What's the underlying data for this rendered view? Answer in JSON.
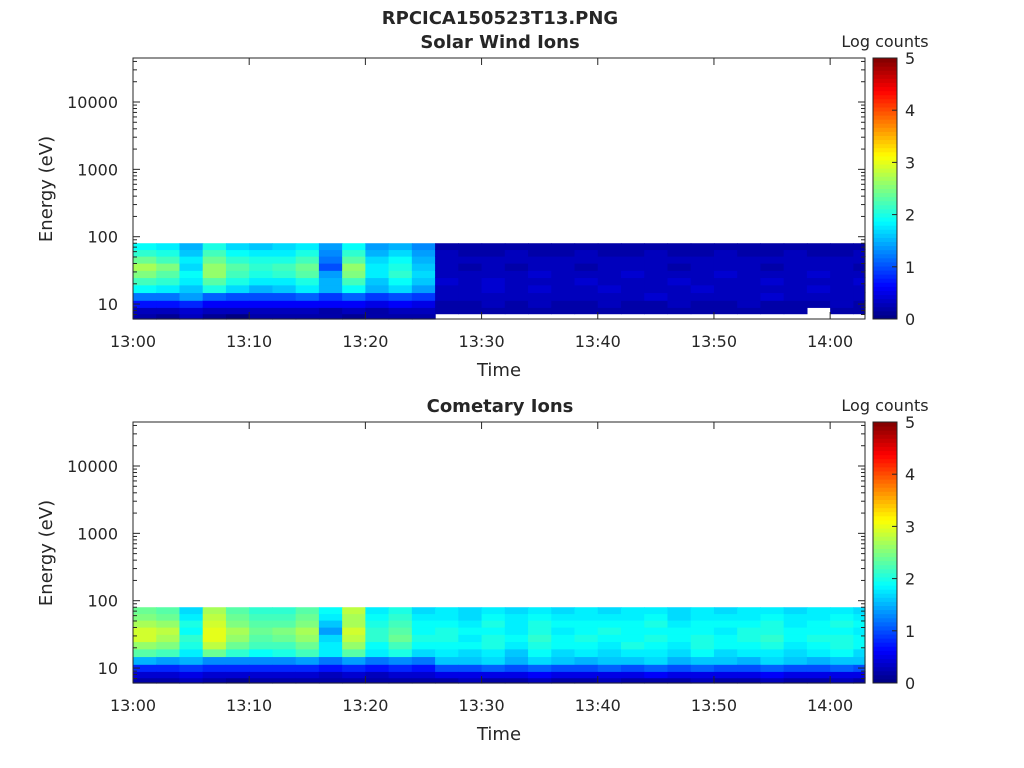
{
  "figure_title": "RPCICA150523T13.PNG",
  "chart_data": [
    {
      "type": "heatmap",
      "title": "Solar Wind Ions",
      "xlabel": "Time",
      "ylabel": "Energy (eV)",
      "x_ticks": [
        "13:00",
        "13:10",
        "13:20",
        "13:30",
        "13:40",
        "13:50",
        "14:00"
      ],
      "x_range": [
        "13:00",
        "14:03"
      ],
      "y_scale": "log",
      "y_ticks": [
        "10",
        "100",
        "1000",
        "10000"
      ],
      "y_range": [
        6,
        45000
      ],
      "data_energy_range": [
        6,
        80
      ],
      "colorbar": {
        "label": "Log counts",
        "ticks": [
          "0",
          "1",
          "2",
          "3",
          "4",
          "5"
        ],
        "range": [
          0,
          5
        ],
        "colormap": "jet"
      },
      "time_bins": [
        "13:00",
        "13:02",
        "13:04",
        "13:06",
        "13:08",
        "13:10",
        "13:12",
        "13:14",
        "13:16",
        "13:18",
        "13:20",
        "13:22",
        "13:24",
        "13:26",
        "13:28",
        "13:30",
        "13:32",
        "13:34",
        "13:36",
        "13:38",
        "13:40",
        "13:42",
        "13:44",
        "13:46",
        "13:48",
        "13:50",
        "13:52",
        "13:54",
        "13:56",
        "13:58",
        "14:00",
        "14:02"
      ],
      "energy_bins": [
        6.5,
        8,
        10,
        13,
        17,
        22,
        28,
        36,
        46,
        58,
        72
      ],
      "log_counts": [
        [
          0.2,
          0.3,
          0.7,
          1.2,
          1.9,
          2.2,
          2.5,
          2.7,
          2.4,
          2.1,
          1.9
        ],
        [
          0.1,
          0.3,
          0.7,
          1.2,
          1.8,
          2.1,
          2.3,
          2.5,
          2.2,
          2.0,
          1.8
        ],
        [
          0.3,
          0.4,
          0.8,
          1.4,
          1.6,
          1.8,
          1.9,
          1.7,
          1.8,
          1.6,
          1.5
        ],
        [
          0.1,
          0.3,
          0.6,
          1.1,
          2.0,
          2.3,
          2.6,
          2.6,
          2.4,
          2.2,
          2.0
        ],
        [
          0.0,
          0.3,
          0.6,
          1.0,
          1.7,
          2.0,
          2.2,
          2.3,
          2.1,
          1.9,
          1.7
        ],
        [
          0.2,
          0.3,
          0.6,
          1.0,
          1.5,
          1.8,
          2.0,
          2.1,
          2.0,
          1.8,
          1.6
        ],
        [
          0.2,
          0.3,
          0.6,
          1.0,
          1.6,
          1.8,
          2.1,
          2.2,
          2.0,
          1.8,
          1.7
        ],
        [
          0.2,
          0.3,
          0.6,
          1.1,
          1.8,
          2.0,
          2.3,
          2.4,
          2.2,
          2.0,
          1.8
        ],
        [
          0.2,
          0.2,
          0.6,
          0.9,
          1.5,
          1.5,
          1.4,
          1.0,
          1.2,
          1.3,
          1.4
        ],
        [
          0.1,
          0.3,
          0.6,
          1.1,
          1.9,
          2.2,
          2.5,
          2.6,
          2.3,
          2.1,
          1.9
        ],
        [
          0.2,
          0.2,
          0.5,
          0.9,
          1.5,
          1.6,
          1.8,
          1.8,
          1.7,
          1.5,
          1.4
        ],
        [
          0.2,
          0.3,
          0.6,
          1.0,
          1.7,
          1.9,
          2.1,
          2.0,
          1.9,
          1.7,
          1.5
        ],
        [
          0.2,
          0.3,
          0.5,
          0.9,
          1.4,
          1.6,
          1.7,
          1.6,
          1.5,
          1.4,
          1.3
        ],
        [
          null,
          0.2,
          0.2,
          0.3,
          0.3,
          0.4,
          0.3,
          0.3,
          0.3,
          0.3,
          0.2
        ],
        [
          null,
          0.2,
          0.2,
          0.3,
          0.3,
          0.3,
          0.3,
          0.2,
          0.3,
          0.2,
          0.2
        ],
        [
          null,
          0.2,
          0.3,
          0.3,
          0.4,
          0.4,
          0.3,
          0.3,
          0.3,
          0.2,
          0.2
        ],
        [
          null,
          0.2,
          0.2,
          0.3,
          0.3,
          0.3,
          0.3,
          0.2,
          0.3,
          0.3,
          0.2
        ],
        [
          null,
          0.2,
          0.3,
          0.3,
          0.4,
          0.3,
          0.4,
          0.3,
          0.3,
          0.2,
          0.2
        ],
        [
          null,
          0.2,
          0.2,
          0.3,
          0.3,
          0.3,
          0.3,
          0.3,
          0.3,
          0.2,
          0.2
        ],
        [
          null,
          0.2,
          0.2,
          0.3,
          0.3,
          0.4,
          0.3,
          0.2,
          0.3,
          0.3,
          0.2
        ],
        [
          null,
          0.2,
          0.3,
          0.3,
          0.4,
          0.3,
          0.3,
          0.3,
          0.3,
          0.2,
          0.2
        ],
        [
          null,
          0.2,
          0.2,
          0.3,
          0.3,
          0.3,
          0.4,
          0.3,
          0.3,
          0.2,
          0.2
        ],
        [
          null,
          0.2,
          0.2,
          0.4,
          0.3,
          0.3,
          0.3,
          0.3,
          0.3,
          0.3,
          0.2
        ],
        [
          null,
          0.2,
          0.3,
          0.3,
          0.3,
          0.4,
          0.3,
          0.2,
          0.3,
          0.2,
          0.2
        ],
        [
          null,
          0.2,
          0.2,
          0.3,
          0.4,
          0.3,
          0.3,
          0.3,
          0.3,
          0.2,
          0.2
        ],
        [
          null,
          0.2,
          0.2,
          0.3,
          0.3,
          0.3,
          0.4,
          0.3,
          0.3,
          0.3,
          0.2
        ],
        [
          null,
          0.2,
          0.3,
          0.3,
          0.3,
          0.3,
          0.3,
          0.3,
          0.3,
          0.2,
          0.2
        ],
        [
          null,
          0.2,
          0.2,
          0.4,
          0.3,
          0.4,
          0.3,
          0.2,
          0.3,
          0.2,
          0.2
        ],
        [
          null,
          0.2,
          0.2,
          0.3,
          0.3,
          0.3,
          0.3,
          0.3,
          0.3,
          0.3,
          0.2
        ],
        [
          null,
          null,
          0.2,
          0.3,
          0.4,
          0.3,
          0.4,
          0.3,
          0.3,
          0.2,
          0.2
        ],
        [
          null,
          0.2,
          0.3,
          0.3,
          0.3,
          0.3,
          0.3,
          0.3,
          0.3,
          0.2,
          0.2
        ],
        [
          null,
          0.2,
          0.2,
          0.3,
          0.3,
          0.4,
          0.3,
          0.2,
          0.3,
          0.3,
          0.2
        ]
      ]
    },
    {
      "type": "heatmap",
      "title": "Cometary Ions",
      "xlabel": "Time",
      "ylabel": "Energy (eV)",
      "x_ticks": [
        "13:00",
        "13:10",
        "13:20",
        "13:30",
        "13:40",
        "13:50",
        "14:00"
      ],
      "x_range": [
        "13:00",
        "14:03"
      ],
      "y_scale": "log",
      "y_ticks": [
        "10",
        "100",
        "1000",
        "10000"
      ],
      "y_range": [
        6,
        45000
      ],
      "data_energy_range": [
        6,
        80
      ],
      "colorbar": {
        "label": "Log counts",
        "ticks": [
          "0",
          "1",
          "2",
          "3",
          "4",
          "5"
        ],
        "range": [
          0,
          5
        ],
        "colormap": "jet"
      },
      "time_bins": [
        "13:00",
        "13:02",
        "13:04",
        "13:06",
        "13:08",
        "13:10",
        "13:12",
        "13:14",
        "13:16",
        "13:18",
        "13:20",
        "13:22",
        "13:24",
        "13:26",
        "13:28",
        "13:30",
        "13:32",
        "13:34",
        "13:36",
        "13:38",
        "13:40",
        "13:42",
        "13:44",
        "13:46",
        "13:48",
        "13:50",
        "13:52",
        "13:54",
        "13:56",
        "13:58",
        "14:00",
        "14:02"
      ],
      "energy_bins": [
        6.5,
        8,
        10,
        13,
        17,
        22,
        28,
        36,
        46,
        58,
        72
      ],
      "log_counts": [
        [
          0.2,
          0.4,
          0.8,
          1.5,
          2.3,
          2.6,
          2.9,
          2.9,
          2.7,
          2.5,
          2.4
        ],
        [
          0.2,
          0.4,
          0.8,
          1.4,
          2.2,
          2.5,
          2.7,
          2.8,
          2.6,
          2.4,
          2.3
        ],
        [
          0.3,
          0.5,
          0.9,
          1.5,
          1.8,
          2.0,
          2.1,
          1.9,
          2.0,
          1.8,
          1.7
        ],
        [
          0.2,
          0.4,
          0.8,
          1.3,
          2.4,
          2.8,
          3.0,
          3.0,
          2.9,
          2.8,
          2.7
        ],
        [
          0.1,
          0.4,
          0.8,
          1.3,
          2.1,
          2.4,
          2.6,
          2.7,
          2.5,
          2.4,
          2.3
        ],
        [
          0.2,
          0.4,
          0.8,
          1.3,
          1.9,
          2.2,
          2.3,
          2.4,
          2.3,
          2.2,
          2.1
        ],
        [
          0.2,
          0.4,
          0.8,
          1.3,
          2.0,
          2.2,
          2.4,
          2.5,
          2.3,
          2.2,
          2.1
        ],
        [
          0.2,
          0.4,
          0.8,
          1.4,
          2.2,
          2.4,
          2.6,
          2.7,
          2.5,
          2.4,
          2.3
        ],
        [
          0.2,
          0.3,
          0.7,
          1.2,
          1.8,
          1.8,
          1.7,
          1.4,
          1.6,
          1.8,
          1.9
        ],
        [
          0.2,
          0.4,
          0.8,
          1.4,
          2.3,
          2.6,
          2.8,
          2.9,
          2.7,
          2.7,
          2.8
        ],
        [
          0.2,
          0.3,
          0.7,
          1.2,
          1.8,
          1.9,
          2.1,
          2.1,
          2.0,
          1.9,
          1.8
        ],
        [
          0.2,
          0.4,
          0.8,
          1.3,
          2.0,
          2.2,
          2.4,
          2.3,
          2.2,
          2.1,
          2.0
        ],
        [
          0.2,
          0.4,
          0.7,
          1.2,
          1.7,
          1.9,
          2.0,
          1.9,
          1.9,
          1.8,
          1.7
        ],
        [
          0.2,
          0.5,
          1.0,
          1.6,
          1.8,
          1.9,
          2.0,
          2.0,
          1.9,
          1.8,
          1.8
        ],
        [
          0.3,
          0.5,
          1.0,
          1.6,
          1.7,
          1.9,
          1.8,
          1.9,
          1.8,
          1.7,
          1.7
        ],
        [
          0.2,
          0.5,
          1.1,
          1.7,
          1.8,
          2.0,
          2.0,
          1.9,
          2.0,
          1.9,
          1.8
        ],
        [
          0.2,
          0.5,
          1.0,
          1.5,
          1.6,
          1.8,
          1.9,
          1.8,
          1.8,
          1.8,
          1.7
        ],
        [
          0.3,
          0.6,
          1.1,
          1.7,
          1.9,
          2.0,
          2.1,
          2.0,
          2.0,
          1.9,
          1.8
        ],
        [
          0.2,
          0.5,
          1.0,
          1.6,
          1.7,
          1.9,
          1.9,
          1.8,
          1.9,
          1.8,
          1.7
        ],
        [
          0.2,
          0.5,
          1.0,
          1.5,
          1.8,
          1.9,
          2.0,
          1.9,
          1.9,
          1.8,
          1.8
        ],
        [
          0.3,
          0.5,
          1.1,
          1.6,
          1.7,
          1.8,
          1.9,
          2.0,
          1.9,
          1.8,
          1.7
        ],
        [
          0.2,
          0.5,
          1.0,
          1.6,
          1.8,
          2.0,
          1.9,
          1.9,
          1.9,
          1.8,
          1.8
        ],
        [
          0.2,
          0.6,
          1.1,
          1.7,
          1.8,
          1.9,
          2.0,
          1.9,
          2.0,
          1.9,
          1.8
        ],
        [
          0.2,
          0.5,
          1.0,
          1.5,
          1.7,
          1.8,
          1.9,
          1.9,
          1.8,
          1.7,
          1.7
        ],
        [
          0.3,
          0.5,
          1.1,
          1.6,
          1.9,
          2.0,
          2.0,
          1.9,
          1.9,
          1.8,
          1.8
        ],
        [
          0.2,
          0.5,
          1.0,
          1.6,
          1.7,
          1.9,
          1.9,
          1.8,
          1.9,
          1.8,
          1.7
        ],
        [
          0.2,
          0.5,
          1.0,
          1.5,
          1.8,
          1.9,
          2.0,
          2.0,
          1.9,
          1.8,
          1.8
        ],
        [
          0.3,
          0.6,
          1.1,
          1.7,
          1.8,
          2.0,
          2.1,
          2.0,
          2.0,
          1.9,
          1.8
        ],
        [
          0.2,
          0.5,
          1.0,
          1.6,
          1.7,
          1.8,
          1.9,
          1.9,
          1.8,
          1.8,
          1.7
        ],
        [
          0.2,
          0.5,
          1.0,
          1.5,
          1.8,
          1.9,
          2.0,
          1.9,
          1.9,
          1.8,
          1.8
        ],
        [
          0.3,
          0.5,
          1.1,
          1.6,
          1.9,
          2.0,
          2.0,
          1.9,
          2.0,
          1.9,
          1.8
        ],
        [
          0.2,
          0.5,
          1.0,
          1.6,
          1.7,
          1.9,
          1.9,
          1.8,
          1.9,
          1.8,
          1.7
        ]
      ]
    }
  ]
}
